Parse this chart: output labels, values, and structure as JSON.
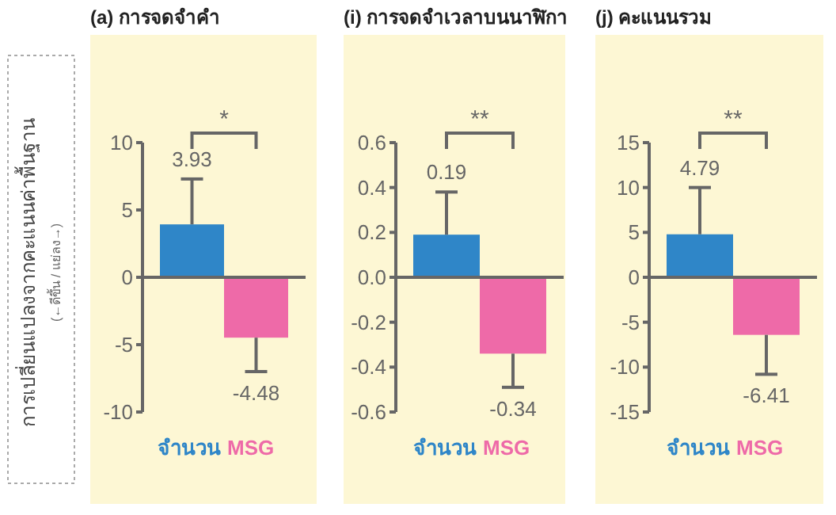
{
  "chart_data": [
    {
      "type": "bar",
      "title": "(a) การจดจำคำ",
      "ylabel": "การเปลี่ยนแปลงจากคะแนนค่าพื้นฐาน",
      "annotations": [
        "(←ดีขึ้น / แย่ลง→)",
        "*"
      ],
      "categories": [
        "จำนวน",
        "MSG"
      ],
      "values": [
        3.93,
        -4.48
      ],
      "colors": [
        "#2f86c8",
        "#ee6aa8"
      ],
      "errors": [
        [
          3.93,
          7.3
        ],
        [
          -7.0,
          -4.48
        ]
      ],
      "ylim": [
        -10,
        10
      ],
      "yticks": [
        -10,
        -5,
        0,
        5,
        10
      ],
      "data_labels": true
    },
    {
      "type": "bar",
      "title": "(i) การจดจำเวลาบนนาฬิกา",
      "annotations": [
        "**"
      ],
      "categories": [
        "จำนวน",
        "MSG"
      ],
      "values": [
        0.19,
        -0.34
      ],
      "colors": [
        "#2f86c8",
        "#ee6aa8"
      ],
      "errors": [
        [
          0.19,
          0.38
        ],
        [
          -0.49,
          -0.34
        ]
      ],
      "ylim": [
        -0.6,
        0.6
      ],
      "yticks": [
        -0.6,
        -0.4,
        -0.2,
        {
          "value": 0,
          "label": "0.0"
        },
        0.2,
        0.4,
        0.6
      ],
      "data_labels": true
    },
    {
      "type": "bar",
      "title": "(j) คะแนนรวม",
      "annotations": [
        "**"
      ],
      "categories": [
        "จำนวน",
        "MSG"
      ],
      "values": [
        4.79,
        -6.41
      ],
      "colors": [
        "#2f86c8",
        "#ee6aa8"
      ],
      "errors": [
        [
          4.79,
          10
        ],
        [
          -10.8,
          -6.41
        ]
      ],
      "ylim": [
        -15,
        15
      ],
      "yticks": [
        -15,
        -10,
        -5,
        0,
        5,
        10,
        15
      ],
      "data_labels": true
    }
  ]
}
